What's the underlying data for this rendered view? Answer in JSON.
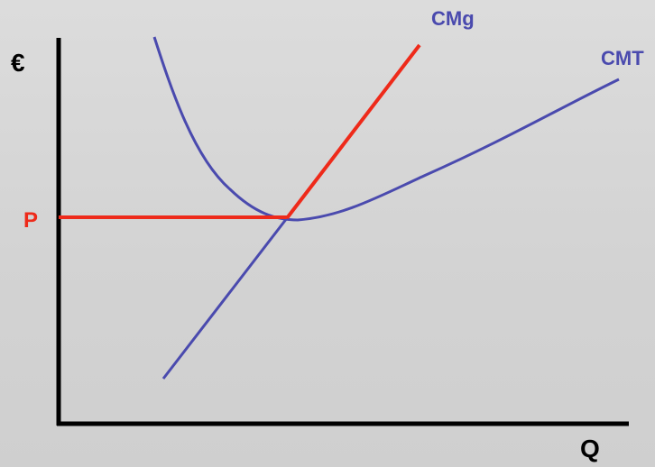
{
  "labels": {
    "y_axis": "€",
    "x_axis": "Q",
    "price": "P",
    "marginal_cost": "CMg",
    "average_total_cost": "CMT"
  },
  "colors": {
    "axis": "#000000",
    "marginal_cost_curve": "#ee2a1a",
    "price_line": "#ee2a1a",
    "average_cost_curve": "#4a4aae",
    "cost_labels": "#4a4aae",
    "price_label": "#ee2a1a"
  }
}
